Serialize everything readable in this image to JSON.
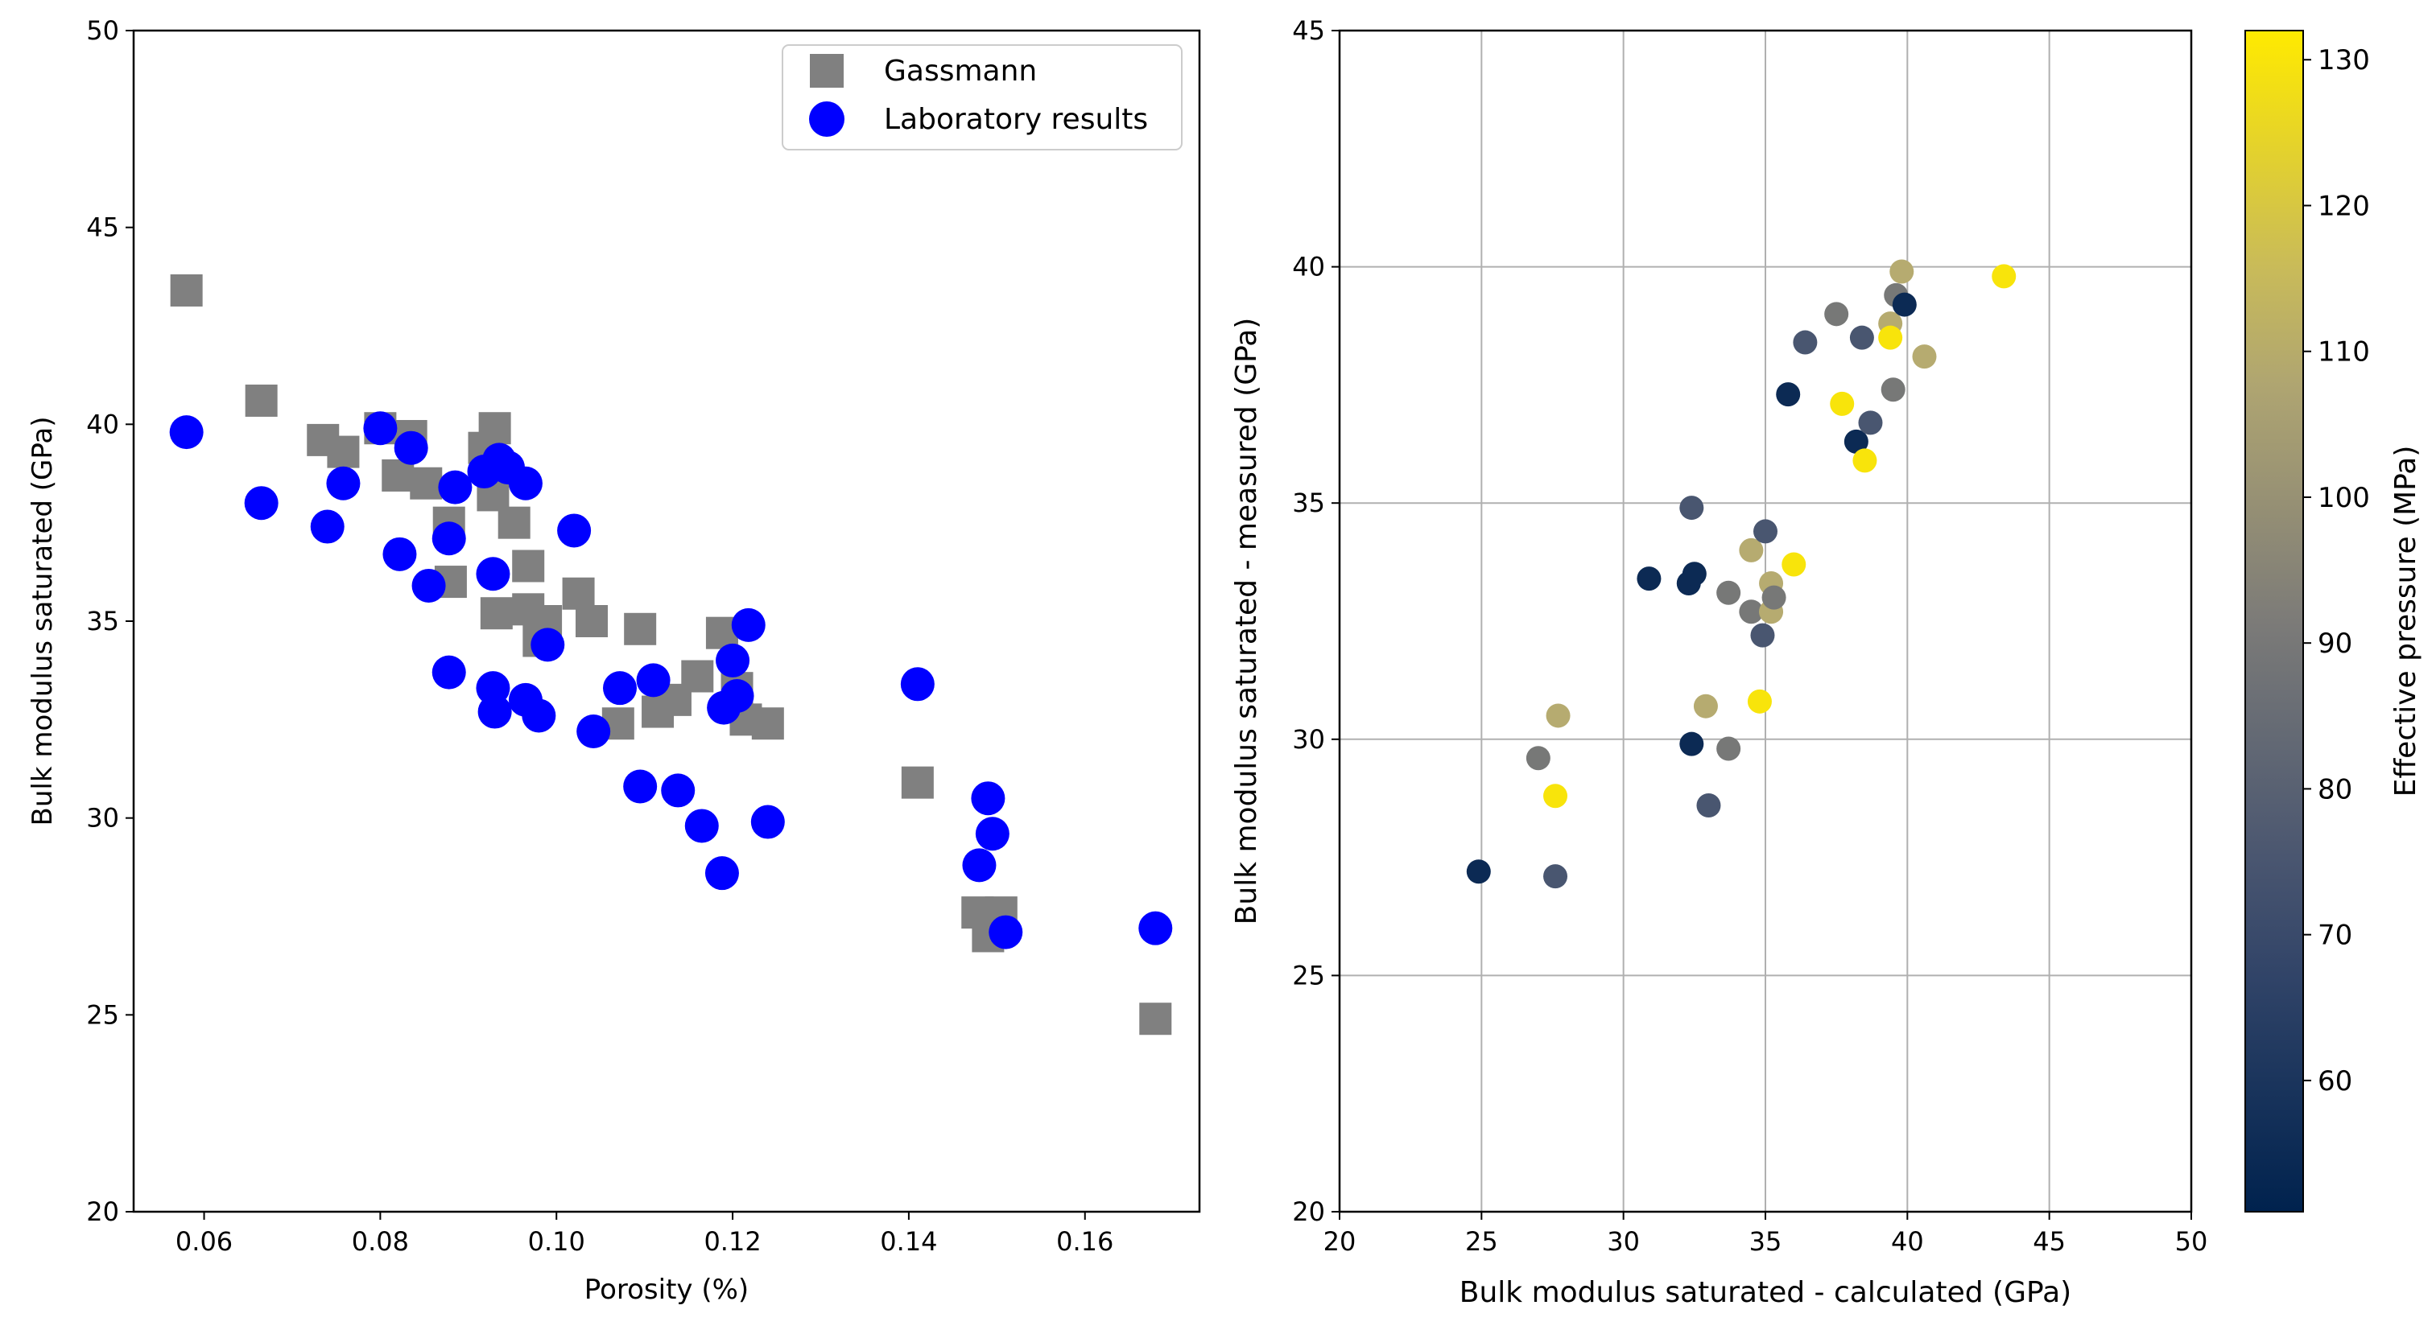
{
  "chart_data": [
    {
      "type": "scatter",
      "title": "",
      "xlabel": "Porosity (%)",
      "ylabel": "Bulk modulus saturated (GPa)",
      "xlim": [
        0.052,
        0.173
      ],
      "ylim": [
        20,
        50
      ],
      "xticks": [
        {
          "v": 0.06,
          "label": "0.06"
        },
        {
          "v": 0.08,
          "label": "0.08"
        },
        {
          "v": 0.1,
          "label": "0.10"
        },
        {
          "v": 0.12,
          "label": "0.12"
        },
        {
          "v": 0.14,
          "label": "0.14"
        },
        {
          "v": 0.16,
          "label": "0.16"
        }
      ],
      "yticks": [
        {
          "v": 20,
          "label": "20"
        },
        {
          "v": 25,
          "label": "25"
        },
        {
          "v": 30,
          "label": "30"
        },
        {
          "v": 35,
          "label": "35"
        },
        {
          "v": 40,
          "label": "40"
        },
        {
          "v": 45,
          "label": "45"
        },
        {
          "v": 50,
          "label": "50"
        }
      ],
      "grid": false,
      "legend_position": "top-right",
      "series": [
        {
          "name": "Gassmann",
          "marker": "square",
          "color": "#808080",
          "points": [
            [
              0.058,
              43.4
            ],
            [
              0.0665,
              40.6
            ],
            [
              0.0735,
              39.6
            ],
            [
              0.0758,
              39.3
            ],
            [
              0.08,
              39.9
            ],
            [
              0.082,
              38.7
            ],
            [
              0.0835,
              39.7
            ],
            [
              0.0852,
              38.5
            ],
            [
              0.0878,
              37.5
            ],
            [
              0.088,
              36.0
            ],
            [
              0.0918,
              39.4
            ],
            [
              0.0928,
              38.2
            ],
            [
              0.093,
              39.9
            ],
            [
              0.0932,
              35.2
            ],
            [
              0.0952,
              37.5
            ],
            [
              0.0968,
              35.3
            ],
            [
              0.0968,
              36.4
            ],
            [
              0.098,
              34.5
            ],
            [
              0.0988,
              35.0
            ],
            [
              0.1025,
              35.7
            ],
            [
              0.104,
              35.0
            ],
            [
              0.107,
              32.4
            ],
            [
              0.1095,
              34.8
            ],
            [
              0.1115,
              32.7
            ],
            [
              0.1135,
              33.0
            ],
            [
              0.116,
              33.6
            ],
            [
              0.1188,
              34.7
            ],
            [
              0.1205,
              33.3
            ],
            [
              0.1215,
              32.5
            ],
            [
              0.124,
              32.4
            ],
            [
              0.141,
              30.9
            ],
            [
              0.1478,
              27.6
            ],
            [
              0.149,
              27.0
            ],
            [
              0.1505,
              27.6
            ],
            [
              0.168,
              24.9
            ]
          ]
        },
        {
          "name": "Laboratory results",
          "marker": "circle",
          "color": "#0000ff",
          "points": [
            [
              0.058,
              39.8
            ],
            [
              0.0665,
              38.0
            ],
            [
              0.074,
              37.4
            ],
            [
              0.0758,
              38.5
            ],
            [
              0.08,
              39.9
            ],
            [
              0.0822,
              36.7
            ],
            [
              0.0835,
              39.4
            ],
            [
              0.0855,
              35.9
            ],
            [
              0.0878,
              37.1
            ],
            [
              0.0878,
              33.7
            ],
            [
              0.0885,
              38.4
            ],
            [
              0.0918,
              38.8
            ],
            [
              0.0928,
              36.2
            ],
            [
              0.0928,
              33.3
            ],
            [
              0.093,
              32.7
            ],
            [
              0.0935,
              39.1
            ],
            [
              0.0945,
              38.9
            ],
            [
              0.0965,
              38.5
            ],
            [
              0.0965,
              33.0
            ],
            [
              0.098,
              32.6
            ],
            [
              0.099,
              34.4
            ],
            [
              0.102,
              37.3
            ],
            [
              0.1042,
              32.2
            ],
            [
              0.1072,
              33.3
            ],
            [
              0.1095,
              30.8
            ],
            [
              0.111,
              33.5
            ],
            [
              0.1138,
              30.7
            ],
            [
              0.1165,
              29.8
            ],
            [
              0.1188,
              28.6
            ],
            [
              0.119,
              32.8
            ],
            [
              0.12,
              34.0
            ],
            [
              0.1205,
              33.1
            ],
            [
              0.1218,
              34.9
            ],
            [
              0.124,
              29.9
            ],
            [
              0.141,
              33.4
            ],
            [
              0.148,
              28.8
            ],
            [
              0.149,
              30.5
            ],
            [
              0.1495,
              29.6
            ],
            [
              0.151,
              27.1
            ],
            [
              0.168,
              27.2
            ]
          ]
        }
      ]
    },
    {
      "type": "scatter",
      "title": "",
      "xlabel": "Bulk modulus saturated - calculated (GPa)",
      "ylabel": "Bulk modulus saturated - measured (GPa)",
      "xlim": [
        20,
        50
      ],
      "ylim": [
        20,
        45
      ],
      "xticks": [
        {
          "v": 20,
          "label": "20"
        },
        {
          "v": 25,
          "label": "25"
        },
        {
          "v": 30,
          "label": "30"
        },
        {
          "v": 35,
          "label": "35"
        },
        {
          "v": 40,
          "label": "40"
        },
        {
          "v": 45,
          "label": "45"
        },
        {
          "v": 50,
          "label": "50"
        }
      ],
      "yticks": [
        {
          "v": 20,
          "label": "20"
        },
        {
          "v": 25,
          "label": "25"
        },
        {
          "v": 30,
          "label": "30"
        },
        {
          "v": 35,
          "label": "35"
        },
        {
          "v": 40,
          "label": "40"
        },
        {
          "v": 45,
          "label": "45"
        }
      ],
      "grid": true,
      "color_variable": "Effective pressure (MPa)",
      "colorbar": {
        "label": "Effective pressure (MPa)",
        "range": [
          51,
          132
        ],
        "colormap": "cividis",
        "ticks": [
          {
            "v": 60,
            "label": "60"
          },
          {
            "v": 70,
            "label": "70"
          },
          {
            "v": 80,
            "label": "80"
          },
          {
            "v": 90,
            "label": "90"
          },
          {
            "v": 100,
            "label": "100"
          },
          {
            "v": 110,
            "label": "110"
          },
          {
            "v": 120,
            "label": "120"
          },
          {
            "v": 130,
            "label": "130"
          }
        ]
      },
      "points": [
        {
          "x": 24.9,
          "y": 27.2,
          "c": 55
        },
        {
          "x": 27.6,
          "y": 27.1,
          "c": 75
        },
        {
          "x": 27.0,
          "y": 29.6,
          "c": 90
        },
        {
          "x": 27.6,
          "y": 28.8,
          "c": 130
        },
        {
          "x": 27.7,
          "y": 30.5,
          "c": 110
        },
        {
          "x": 30.9,
          "y": 33.4,
          "c": 55
        },
        {
          "x": 32.3,
          "y": 33.3,
          "c": 55
        },
        {
          "x": 32.5,
          "y": 33.5,
          "c": 55
        },
        {
          "x": 32.4,
          "y": 34.9,
          "c": 75
        },
        {
          "x": 32.4,
          "y": 29.9,
          "c": 55
        },
        {
          "x": 32.9,
          "y": 30.7,
          "c": 110
        },
        {
          "x": 33.0,
          "y": 28.6,
          "c": 75
        },
        {
          "x": 33.7,
          "y": 29.8,
          "c": 90
        },
        {
          "x": 33.7,
          "y": 33.1,
          "c": 90
        },
        {
          "x": 34.5,
          "y": 34.0,
          "c": 110
        },
        {
          "x": 34.5,
          "y": 32.7,
          "c": 90
        },
        {
          "x": 34.8,
          "y": 30.8,
          "c": 130
        },
        {
          "x": 35.0,
          "y": 34.4,
          "c": 75
        },
        {
          "x": 34.9,
          "y": 32.2,
          "c": 75
        },
        {
          "x": 35.2,
          "y": 32.7,
          "c": 110
        },
        {
          "x": 35.2,
          "y": 33.3,
          "c": 110
        },
        {
          "x": 35.3,
          "y": 33.0,
          "c": 90
        },
        {
          "x": 36.0,
          "y": 33.7,
          "c": 130
        },
        {
          "x": 35.8,
          "y": 37.3,
          "c": 55
        },
        {
          "x": 36.4,
          "y": 38.4,
          "c": 75
        },
        {
          "x": 37.5,
          "y": 39.0,
          "c": 90
        },
        {
          "x": 37.7,
          "y": 37.1,
          "c": 130
        },
        {
          "x": 38.2,
          "y": 36.3,
          "c": 55
        },
        {
          "x": 38.4,
          "y": 38.5,
          "c": 75
        },
        {
          "x": 38.5,
          "y": 35.9,
          "c": 130
        },
        {
          "x": 38.7,
          "y": 36.7,
          "c": 75
        },
        {
          "x": 39.4,
          "y": 38.8,
          "c": 110
        },
        {
          "x": 39.4,
          "y": 38.5,
          "c": 130
        },
        {
          "x": 39.5,
          "y": 37.4,
          "c": 90
        },
        {
          "x": 39.6,
          "y": 39.4,
          "c": 90
        },
        {
          "x": 39.8,
          "y": 39.9,
          "c": 110
        },
        {
          "x": 39.9,
          "y": 39.2,
          "c": 55
        },
        {
          "x": 40.6,
          "y": 38.1,
          "c": 110
        },
        {
          "x": 43.4,
          "y": 39.8,
          "c": 130
        }
      ]
    }
  ]
}
